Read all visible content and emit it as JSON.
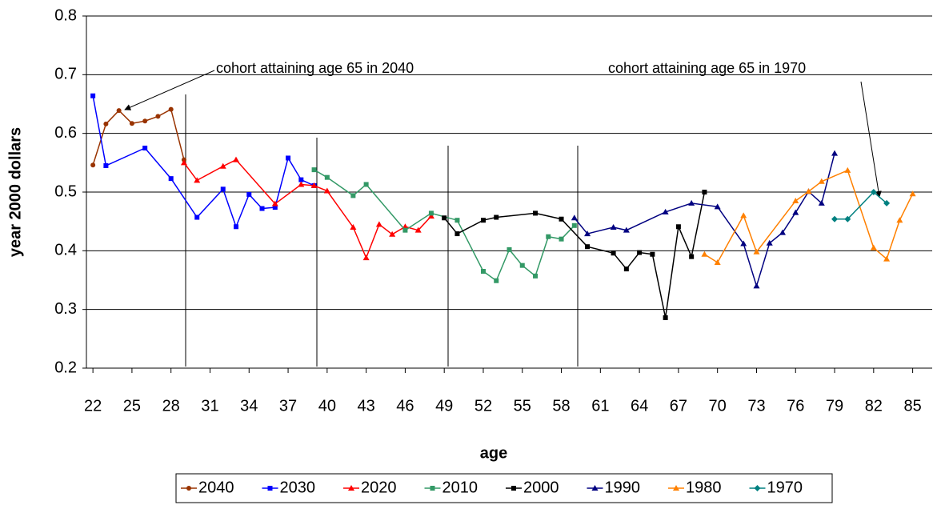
{
  "chart_data": {
    "type": "line",
    "ylabel": "year 2000 dollars",
    "xlabel": "age",
    "xlim": [
      21.5,
      86.5
    ],
    "xticks": [
      22,
      25,
      28,
      31,
      34,
      37,
      40,
      43,
      46,
      49,
      52,
      55,
      58,
      61,
      64,
      67,
      70,
      73,
      76,
      79,
      82,
      85
    ],
    "ylim": [
      0.2,
      0.8
    ],
    "yticks": [
      0.2,
      0.3,
      0.4,
      0.5,
      0.6,
      0.7,
      0.8
    ],
    "grid": true,
    "legend": "bottom",
    "annotations": [
      "cohort attaining age 65 in 2040",
      "cohort attaining age 65 in 1970"
    ],
    "series": [
      {
        "name": "2040",
        "color": "#993300",
        "marker": "circle",
        "x": [
          22,
          23,
          24,
          25,
          26,
          27,
          28,
          29
        ],
        "values": [
          0.546,
          0.616,
          0.639,
          0.617,
          0.621,
          0.629,
          0.641,
          0.555
        ]
      },
      {
        "name": "2030",
        "color": "#0000ff",
        "marker": "square",
        "x": [
          22,
          23,
          26,
          28,
          30,
          32,
          33,
          34,
          35,
          36,
          37,
          38,
          39
        ],
        "values": [
          0.664,
          0.545,
          0.575,
          0.523,
          0.457,
          0.505,
          0.441,
          0.496,
          0.472,
          0.474,
          0.558,
          0.521,
          0.511
        ]
      },
      {
        "name": "2020",
        "color": "#ff0000",
        "marker": "triangle",
        "x": [
          29,
          30,
          32,
          33,
          36,
          38,
          39,
          40,
          42,
          43,
          44,
          45,
          46,
          47,
          48
        ],
        "values": [
          0.55,
          0.52,
          0.544,
          0.555,
          0.48,
          0.513,
          0.511,
          0.502,
          0.44,
          0.388,
          0.445,
          0.428,
          0.441,
          0.435,
          0.459
        ]
      },
      {
        "name": "2010",
        "color": "#339966",
        "marker": "square",
        "x": [
          39,
          40,
          42,
          43,
          46,
          48,
          50,
          52,
          53,
          54,
          55,
          56,
          57,
          58,
          59
        ],
        "values": [
          0.538,
          0.525,
          0.494,
          0.513,
          0.435,
          0.464,
          0.452,
          0.365,
          0.349,
          0.402,
          0.375,
          0.357,
          0.424,
          0.42,
          0.443
        ]
      },
      {
        "name": "2000",
        "color": "#000000",
        "marker": "square",
        "x": [
          49,
          50,
          52,
          53,
          56,
          58,
          60,
          62,
          63,
          64,
          65,
          66,
          67,
          68,
          69
        ],
        "values": [
          0.456,
          0.429,
          0.452,
          0.457,
          0.464,
          0.454,
          0.407,
          0.396,
          0.369,
          0.397,
          0.394,
          0.286,
          0.441,
          0.39,
          0.5
        ]
      },
      {
        "name": "1990",
        "color": "#000080",
        "marker": "triangle",
        "x": [
          59,
          60,
          62,
          63,
          66,
          68,
          70,
          72,
          73,
          74,
          75,
          76,
          77,
          78,
          79
        ],
        "values": [
          0.456,
          0.429,
          0.44,
          0.435,
          0.466,
          0.481,
          0.475,
          0.412,
          0.34,
          0.413,
          0.431,
          0.465,
          0.501,
          0.481,
          0.566
        ]
      },
      {
        "name": "1980",
        "color": "#ff8000",
        "marker": "triangle",
        "x": [
          69,
          70,
          72,
          73,
          76,
          77,
          78,
          80,
          82,
          83,
          84,
          85
        ],
        "values": [
          0.394,
          0.38,
          0.46,
          0.398,
          0.485,
          0.501,
          0.518,
          0.537,
          0.405,
          0.386,
          0.452,
          0.497
        ]
      },
      {
        "name": "1970",
        "color": "#008080",
        "marker": "diamond",
        "x": [
          79,
          80,
          82,
          83
        ],
        "values": [
          0.454,
          0.454,
          0.5,
          0.481
        ]
      }
    ]
  }
}
